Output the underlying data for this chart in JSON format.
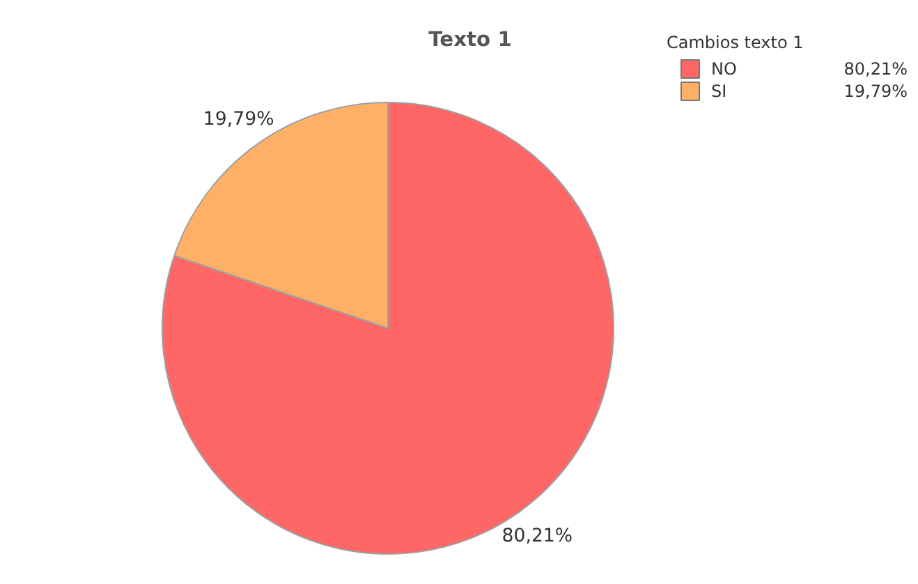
{
  "chart_data": {
    "type": "pie",
    "title": "Texto 1",
    "legend_title": "Cambios texto 1",
    "legend": "top right",
    "categories": [
      "NO",
      "SI"
    ],
    "values": [
      80.21,
      19.79
    ],
    "colors": [
      "#ff6666",
      "#ffb066"
    ],
    "value_labels": [
      "80,21%",
      "19,79%"
    ]
  }
}
